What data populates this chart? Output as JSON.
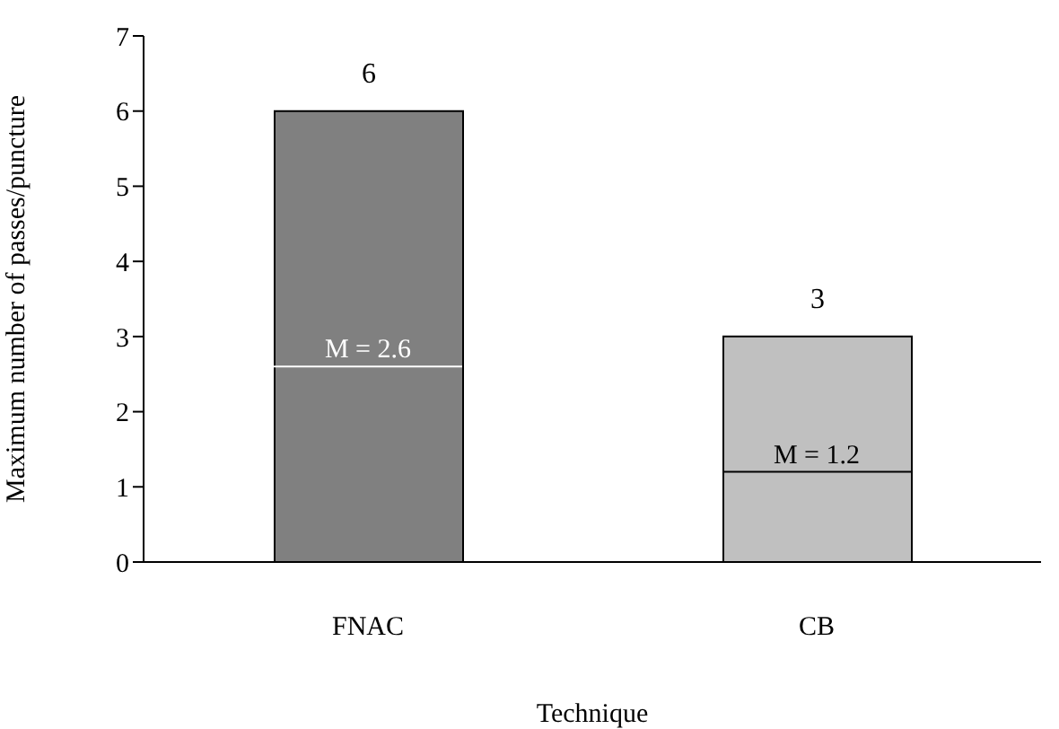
{
  "chart_data": {
    "type": "bar",
    "categories": [
      "FNAC",
      "CB"
    ],
    "values": [
      6,
      3
    ],
    "colors": [
      "#808080",
      "#c0c0c0"
    ],
    "ylim": [
      0,
      7
    ],
    "yticks": [
      0,
      1,
      2,
      3,
      4,
      5,
      6,
      7
    ],
    "ylabel": "Maximum number of passes/puncture",
    "xlabel": "Technique",
    "data_labels": true,
    "ref_lines": [
      {
        "axis": "y",
        "value": 2.6,
        "label": "M = 2.6",
        "color": "#ffffff"
      },
      {
        "axis": "y",
        "value": 1.2,
        "label": "M = 1.2",
        "color": "#000000"
      }
    ]
  }
}
